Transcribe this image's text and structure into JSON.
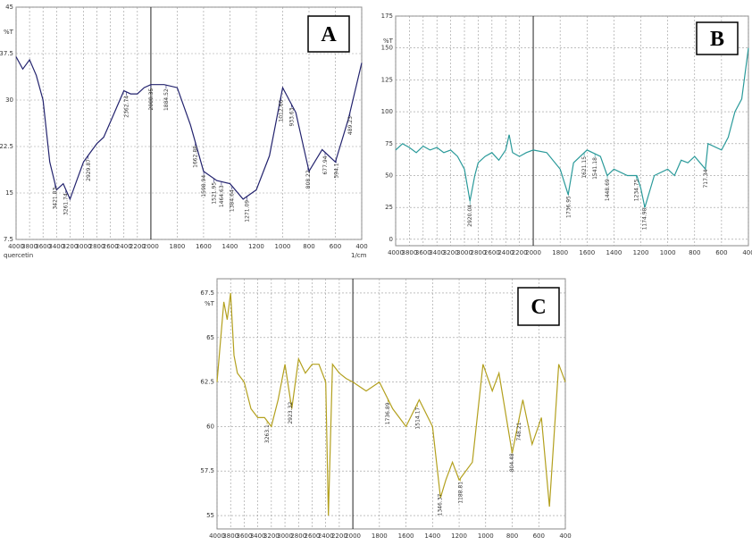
{
  "chart_data": [
    {
      "type": "line",
      "label": "A",
      "y_label": "%T",
      "x_label": "1/cm",
      "note": "quercetin",
      "color": "#23236e",
      "xlim": [
        4000,
        400
      ],
      "x_scale_break": 2000,
      "xticks": [
        4000,
        3800,
        3600,
        3400,
        3200,
        3000,
        2800,
        2600,
        2400,
        2200,
        2000,
        1800,
        1600,
        1400,
        1200,
        1000,
        800,
        600,
        400
      ],
      "ylim": [
        7.5,
        45
      ],
      "yticks": [
        7.5,
        15,
        22.5,
        30,
        37.5,
        45
      ],
      "grid": true,
      "x": [
        4000,
        3900,
        3800,
        3700,
        3600,
        3500,
        3400,
        3300,
        3200,
        3100,
        3000,
        2900,
        2800,
        2700,
        2600,
        2500,
        2400,
        2300,
        2200,
        2100,
        2000,
        1900,
        1800,
        1700,
        1600,
        1500,
        1400,
        1300,
        1200,
        1100,
        1000,
        900,
        800,
        700,
        600,
        500,
        400
      ],
      "values": [
        37,
        35,
        36.5,
        34,
        30,
        20,
        15.5,
        16.5,
        14,
        17,
        20,
        21.5,
        23,
        24,
        26.5,
        29,
        31.5,
        31,
        31,
        32,
        32.5,
        32.5,
        32,
        26,
        18.5,
        17,
        16.5,
        14,
        15.5,
        21,
        32,
        28,
        18.5,
        22,
        20,
        27,
        36
      ],
      "peak_labels": [
        3421.83,
        3261.74,
        2929.87,
        2362.74,
        2000.35,
        1884.52,
        1662.88,
        1598.94,
        1521.95,
        1464.63,
        1384.64,
        1271.09,
        1012.66,
        933.63,
        808.22,
        677.94,
        594.1,
        489.23
      ]
    },
    {
      "type": "line",
      "label": "B",
      "y_label": "%T",
      "color": "#2a9a9a",
      "xlim": [
        4000,
        400
      ],
      "x_scale_break": 2000,
      "xticks": [
        4000,
        3800,
        3600,
        3400,
        3200,
        3000,
        2800,
        2600,
        2400,
        2200,
        2000,
        1800,
        1600,
        1400,
        1200,
        1000,
        800,
        600,
        400
      ],
      "ylim": [
        -5,
        175
      ],
      "yticks": [
        0,
        25,
        50,
        75,
        100,
        125,
        150,
        175
      ],
      "grid": true,
      "x": [
        4000,
        3900,
        3800,
        3700,
        3600,
        3500,
        3400,
        3300,
        3200,
        3100,
        3000,
        2920,
        2850,
        2800,
        2700,
        2600,
        2500,
        2400,
        2350,
        2300,
        2200,
        2100,
        2000,
        1900,
        1800,
        1740,
        1700,
        1600,
        1500,
        1450,
        1400,
        1300,
        1230,
        1200,
        1170,
        1100,
        1000,
        950,
        900,
        850,
        800,
        720,
        700,
        600,
        550,
        500,
        450,
        400
      ],
      "values": [
        70,
        75,
        72,
        68,
        73,
        70,
        72,
        68,
        70,
        65,
        55,
        30,
        50,
        60,
        65,
        68,
        62,
        70,
        82,
        68,
        65,
        68,
        70,
        68,
        55,
        35,
        60,
        70,
        65,
        50,
        55,
        50,
        50,
        40,
        25,
        50,
        55,
        50,
        62,
        60,
        65,
        55,
        75,
        70,
        80,
        100,
        110,
        150
      ],
      "peak_labels": [
        2920.04,
        1736.95,
        1621.15,
        1541.18,
        1448.69,
        1234.75,
        1174.98,
        717.34
      ]
    },
    {
      "type": "line",
      "label": "C",
      "y_label": "%T",
      "color": "#b3a01e",
      "xlim": [
        4000,
        400
      ],
      "x_scale_break": 2000,
      "xticks": [
        4000,
        3800,
        3600,
        3400,
        3200,
        3000,
        2800,
        2600,
        2400,
        2200,
        2000,
        1800,
        1600,
        1400,
        1200,
        1000,
        800,
        600,
        400
      ],
      "ylim": [
        54.25,
        68.3
      ],
      "yticks": [
        55,
        57.5,
        60,
        62.5,
        65,
        67.5
      ],
      "grid": true,
      "x": [
        4000,
        3900,
        3850,
        3800,
        3750,
        3700,
        3600,
        3500,
        3400,
        3300,
        3200,
        3100,
        3000,
        2900,
        2800,
        2700,
        2600,
        2500,
        2400,
        2360,
        2300,
        2200,
        2100,
        2000,
        1900,
        1800,
        1700,
        1600,
        1500,
        1400,
        1340,
        1300,
        1250,
        1200,
        1100,
        1020,
        950,
        900,
        800,
        720,
        650,
        580,
        520,
        450,
        400
      ],
      "values": [
        62.5,
        67,
        66,
        67.5,
        64,
        63,
        62.5,
        61,
        60.5,
        60.5,
        60,
        61.5,
        63.5,
        61,
        63.8,
        63,
        63.5,
        63.5,
        62.5,
        55,
        63.5,
        63,
        62.7,
        62.5,
        62,
        62.5,
        61,
        60,
        61.5,
        60,
        56,
        57,
        58,
        57,
        58,
        63.5,
        62,
        63,
        58.5,
        61.5,
        59,
        60.5,
        55.5,
        63.5,
        62.5
      ],
      "peak_labels": [
        3263.1,
        2923.32,
        1736.89,
        1514.17,
        1346.37,
        1188.81,
        804.48,
        748.21
      ]
    }
  ]
}
